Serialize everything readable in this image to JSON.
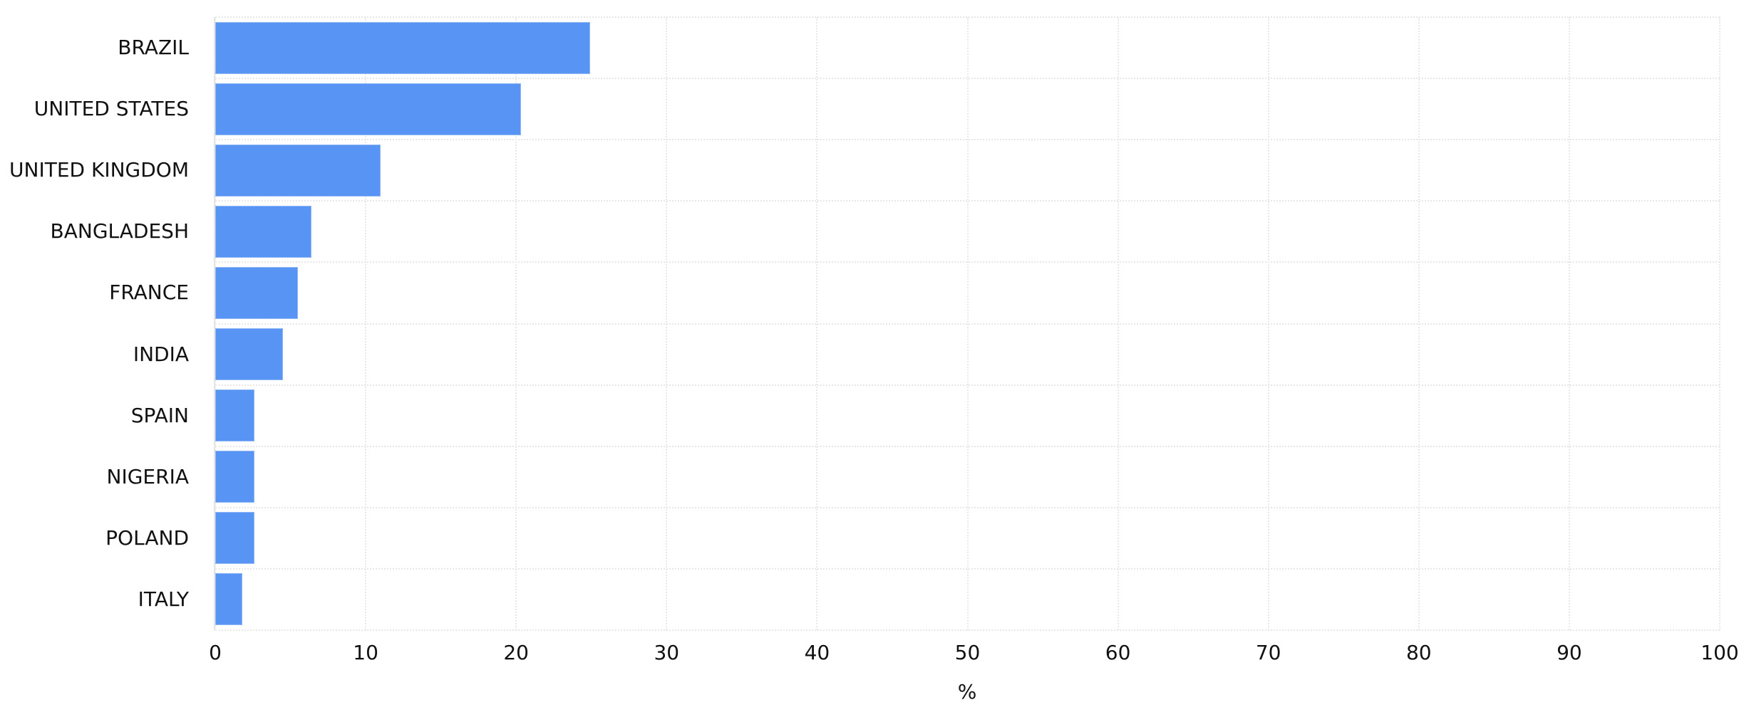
{
  "chart_data": {
    "type": "bar",
    "orientation": "horizontal",
    "title": "",
    "xlabel": "%",
    "ylabel": "",
    "xlim": [
      0,
      100
    ],
    "xticks": [
      0,
      10,
      20,
      30,
      40,
      50,
      60,
      70,
      80,
      90,
      100
    ],
    "grid": true,
    "legend": null,
    "color": "#5894f4",
    "categories": [
      "BRAZIL",
      "UNITED STATES",
      "UNITED KINGDOM",
      "BANGLADESH",
      "FRANCE",
      "INDIA",
      "SPAIN",
      "NIGERIA",
      "POLAND",
      "ITALY"
    ],
    "values": [
      24.9,
      20.3,
      11.0,
      6.4,
      5.5,
      4.5,
      2.6,
      2.6,
      2.6,
      1.8
    ]
  },
  "axis": {
    "x_title": "%",
    "x_tick_labels": [
      "0",
      "10",
      "20",
      "30",
      "40",
      "50",
      "60",
      "70",
      "80",
      "90",
      "100"
    ]
  }
}
